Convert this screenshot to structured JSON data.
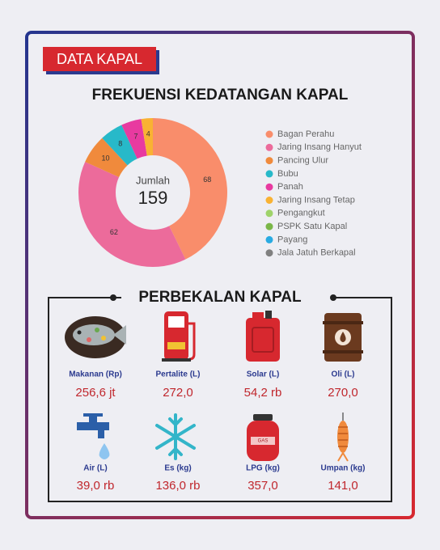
{
  "header": {
    "title": "DATA KAPAL"
  },
  "chart_data": {
    "type": "donut",
    "title": "FREKUENSI KEDATANGAN KAPAL",
    "center_label": "Jumlah",
    "total": 159,
    "categories": [
      "Bagan Perahu",
      "Jaring Insang Hanyut",
      "Pancing Ulur",
      "Bubu",
      "Panah",
      "Jaring Insang Tetap",
      "Pengangkut",
      "PSPK Satu Kapal",
      "Payang",
      "Jala Jatuh Berkapal"
    ],
    "values": [
      68,
      62,
      10,
      8,
      7,
      4,
      0,
      0,
      0,
      0
    ],
    "colors": [
      "#f98d6b",
      "#ec6b9b",
      "#f08a3c",
      "#27b9c9",
      "#e83aa0",
      "#f9b233",
      "#9fd36a",
      "#7ab648",
      "#29abe2",
      "#808080"
    ]
  },
  "provisions": {
    "title": "PERBEKALAN KAPAL",
    "items": [
      {
        "label": "Makanan (Rp)",
        "value": "256,6 jt"
      },
      {
        "label": "Pertalite (L)",
        "value": "272,0"
      },
      {
        "label": "Solar (L)",
        "value": "54,2 rb"
      },
      {
        "label": "Oli (L)",
        "value": "270,0"
      },
      {
        "label": "Air (L)",
        "value": "39,0 rb"
      },
      {
        "label": "Es (kg)",
        "value": "136,0 rb"
      },
      {
        "label": "LPG (kg)",
        "value": "357,0"
      },
      {
        "label": "Umpan (kg)",
        "value": "141,0"
      }
    ]
  }
}
